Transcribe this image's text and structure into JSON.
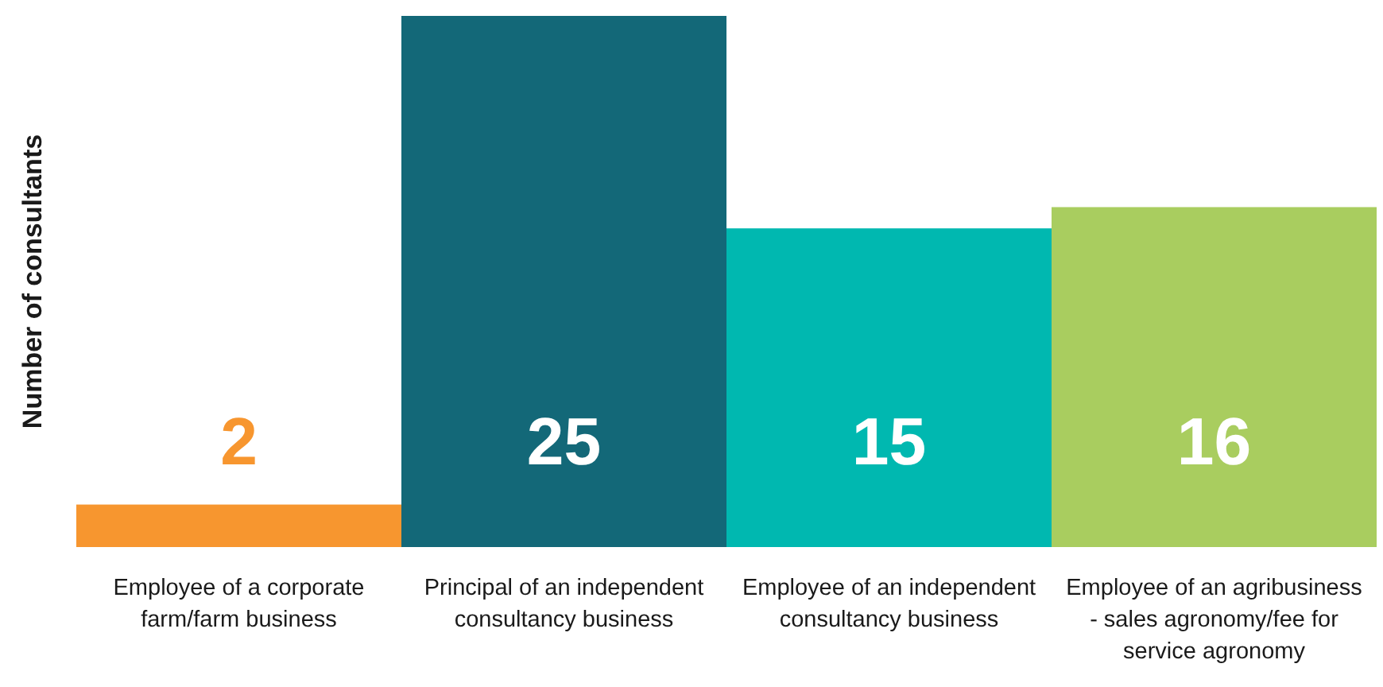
{
  "chart_data": {
    "type": "bar",
    "ylabel": "Number of consultants",
    "categories": [
      "Employee of a corporate farm/farm business",
      "Principal of an independent consultancy business",
      "Employee of an independent consultancy business",
      "Employee of an agribusiness - sales agronomy/fee for service agronomy"
    ],
    "values": [
      2,
      25,
      15,
      16
    ],
    "colors": [
      "#f7962f",
      "#136878",
      "#00b8b0",
      "#a9cd5f"
    ],
    "data_labels": true
  }
}
